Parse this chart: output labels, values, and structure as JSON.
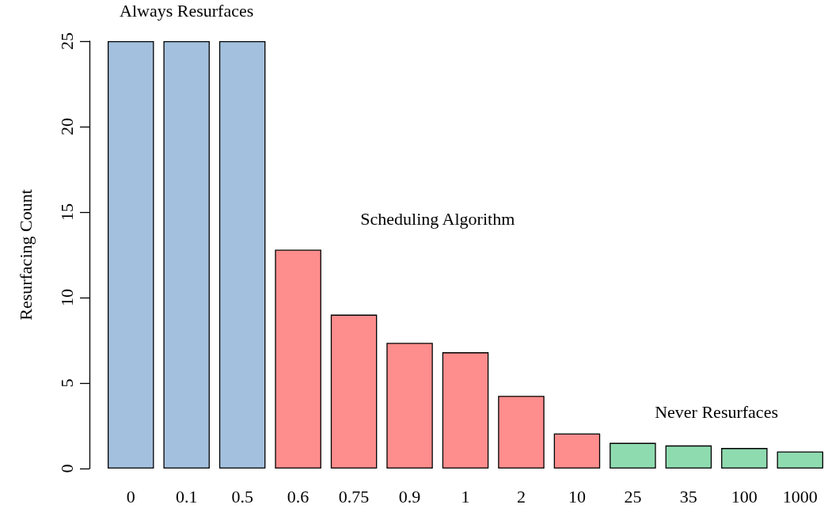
{
  "chart_data": {
    "type": "bar",
    "ylabel": "Resurfacing Count",
    "categories": [
      "0",
      "0.1",
      "0.5",
      "0.6",
      "0.75",
      "0.9",
      "1",
      "2",
      "10",
      "25",
      "35",
      "100",
      "1000"
    ],
    "values": [
      25,
      25,
      25,
      12.8,
      9.0,
      7.35,
      6.8,
      4.25,
      2.05,
      1.5,
      1.35,
      1.2,
      1.0
    ],
    "colors": [
      "#a3c1de",
      "#a3c1de",
      "#a3c1de",
      "#fe8d8d",
      "#fe8d8d",
      "#fe8d8d",
      "#fe8d8d",
      "#fe8d8d",
      "#fe8d8d",
      "#8fdbb0",
      "#8fdbb0",
      "#8fdbb0",
      "#8fdbb0"
    ],
    "annotations": [
      "Always Resurfaces",
      "Scheduling Algorithm",
      "Never Resurfaces"
    ],
    "ylim": [
      0,
      25
    ],
    "yticks": [
      0,
      5,
      10,
      15,
      20,
      25
    ],
    "grid": false
  }
}
